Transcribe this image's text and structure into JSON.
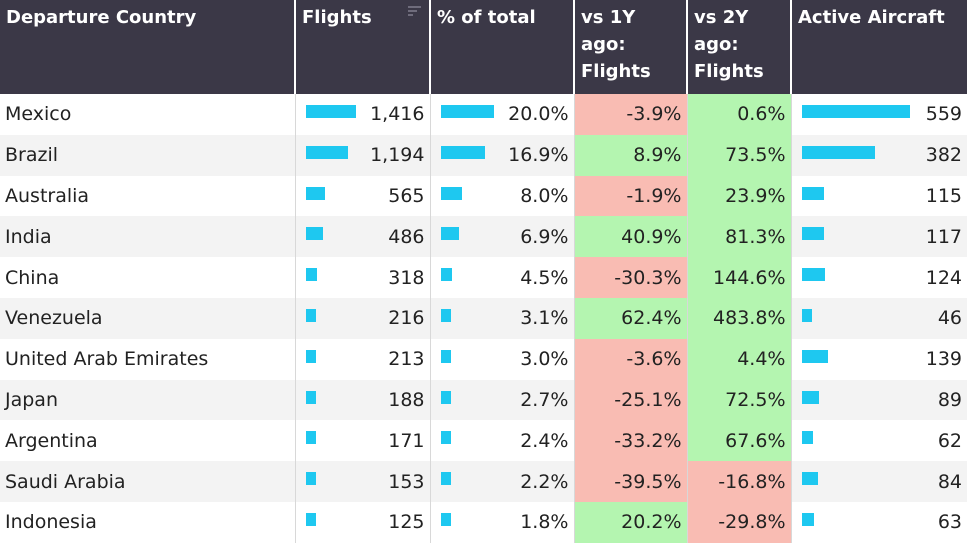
{
  "table": {
    "headers": [
      "Departure Country",
      "Flights",
      "% of total",
      "vs 1Y ago: Flights",
      "vs 2Y ago: Flights",
      "Active Aircraft"
    ],
    "rows": [
      {
        "country": "Mexico",
        "flights": "1,416",
        "flights_value": 1416,
        "pct": "20.0%",
        "pct_value": 20.0,
        "vs1y": "-3.9%",
        "vs1y_status": "negative",
        "vs2y": "0.6%",
        "vs2y_status": "positive",
        "aircraft": "559",
        "aircraft_value": 559
      },
      {
        "country": "Brazil",
        "flights": "1,194",
        "flights_value": 1194,
        "pct": "16.9%",
        "pct_value": 16.9,
        "vs1y": "8.9%",
        "vs1y_status": "positive",
        "vs2y": "73.5%",
        "vs2y_status": "positive",
        "aircraft": "382",
        "aircraft_value": 382
      },
      {
        "country": "Australia",
        "flights": "565",
        "flights_value": 565,
        "pct": "8.0%",
        "pct_value": 8.0,
        "vs1y": "-1.9%",
        "vs1y_status": "negative",
        "vs2y": "23.9%",
        "vs2y_status": "positive",
        "aircraft": "115",
        "aircraft_value": 115
      },
      {
        "country": "India",
        "flights": "486",
        "flights_value": 486,
        "pct": "6.9%",
        "pct_value": 6.9,
        "vs1y": "40.9%",
        "vs1y_status": "positive",
        "vs2y": "81.3%",
        "vs2y_status": "positive",
        "aircraft": "117",
        "aircraft_value": 117
      },
      {
        "country": "China",
        "flights": "318",
        "flights_value": 318,
        "pct": "4.5%",
        "pct_value": 4.5,
        "vs1y": "-30.3%",
        "vs1y_status": "negative",
        "vs2y": "144.6%",
        "vs2y_status": "positive",
        "aircraft": "124",
        "aircraft_value": 124
      },
      {
        "country": "Venezuela",
        "flights": "216",
        "flights_value": 216,
        "pct": "3.1%",
        "pct_value": 3.1,
        "vs1y": "62.4%",
        "vs1y_status": "positive",
        "vs2y": "483.8%",
        "vs2y_status": "positive",
        "aircraft": "46",
        "aircraft_value": 46
      },
      {
        "country": "United Arab Emirates",
        "flights": "213",
        "flights_value": 213,
        "pct": "3.0%",
        "pct_value": 3.0,
        "vs1y": "-3.6%",
        "vs1y_status": "negative",
        "vs2y": "4.4%",
        "vs2y_status": "positive",
        "aircraft": "139",
        "aircraft_value": 139
      },
      {
        "country": "Japan",
        "flights": "188",
        "flights_value": 188,
        "pct": "2.7%",
        "pct_value": 2.7,
        "vs1y": "-25.1%",
        "vs1y_status": "negative",
        "vs2y": "72.5%",
        "vs2y_status": "positive",
        "aircraft": "89",
        "aircraft_value": 89
      },
      {
        "country": "Argentina",
        "flights": "171",
        "flights_value": 171,
        "pct": "2.4%",
        "pct_value": 2.4,
        "vs1y": "-33.2%",
        "vs1y_status": "negative",
        "vs2y": "67.6%",
        "vs2y_status": "positive",
        "aircraft": "62",
        "aircraft_value": 62
      },
      {
        "country": "Saudi Arabia",
        "flights": "153",
        "flights_value": 153,
        "pct": "2.2%",
        "pct_value": 2.2,
        "vs1y": "-39.5%",
        "vs1y_status": "negative",
        "vs2y": "-16.8%",
        "vs2y_status": "negative",
        "aircraft": "84",
        "aircraft_value": 84
      },
      {
        "country": "Indonesia",
        "flights": "125",
        "flights_value": 125,
        "pct": "1.8%",
        "pct_value": 1.8,
        "vs1y": "20.2%",
        "vs1y_status": "positive",
        "vs2y": "-29.8%",
        "vs2y_status": "negative",
        "aircraft": "63",
        "aircraft_value": 63
      }
    ]
  },
  "icons": {
    "sort": "sort-icon"
  },
  "colors": {
    "header_bg": "#3b3847",
    "bar": "#1ec8f0",
    "negative_bg": "#f9bcb3",
    "positive_bg": "#b4f5b0",
    "alt_row_bg": "#f3f3f3"
  }
}
